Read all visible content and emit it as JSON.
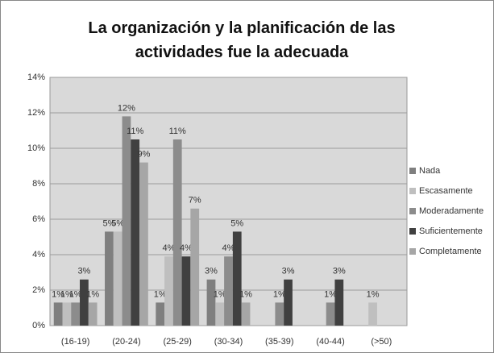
{
  "chart_data": {
    "type": "bar",
    "title": "La organización y la planificación de las actividades fue la adecuada",
    "categories": [
      "(16-19)",
      "(20-24)",
      "(25-29)",
      "(30-34)",
      "(35-39)",
      "(40-44)",
      "(>50)"
    ],
    "series": [
      {
        "name": "Nada",
        "color": "#7f7f7f",
        "values": [
          1.3,
          5.3,
          1.3,
          2.6,
          null,
          null,
          null
        ],
        "value_labels": [
          "1%",
          "5%",
          "1%",
          "3%",
          null,
          null,
          null
        ]
      },
      {
        "name": "Escasamente",
        "color": "#bfbfbf",
        "values": [
          1.3,
          5.3,
          3.9,
          1.3,
          null,
          null,
          1.3
        ],
        "value_labels": [
          "1%",
          "5%",
          "4%",
          "1%",
          null,
          null,
          "1%"
        ]
      },
      {
        "name": "Moderadamente",
        "color": "#8c8c8c",
        "values": [
          1.3,
          11.8,
          10.5,
          3.9,
          1.3,
          1.3,
          null
        ],
        "value_labels": [
          "1%",
          "12%",
          "11%",
          "4%",
          "1%",
          "1%",
          null
        ]
      },
      {
        "name": "Suficientemente",
        "color": "#404040",
        "values": [
          2.6,
          10.5,
          3.9,
          5.3,
          2.6,
          2.6,
          null
        ],
        "value_labels": [
          "3%",
          "11%",
          "4%",
          "5%",
          "3%",
          "3%",
          null
        ]
      },
      {
        "name": "Completamente",
        "color": "#a6a6a6",
        "values": [
          1.3,
          9.2,
          6.6,
          1.3,
          null,
          null,
          null
        ],
        "value_labels": [
          "1%",
          "9%",
          "7%",
          "1%",
          null,
          null,
          null
        ]
      }
    ],
    "ylim": [
      0,
      14
    ],
    "yticks": [
      {
        "value": 0,
        "label": "0%"
      },
      {
        "value": 2,
        "label": "2%"
      },
      {
        "value": 4,
        "label": "4%"
      },
      {
        "value": 6,
        "label": "6%"
      },
      {
        "value": 8,
        "label": "8%"
      },
      {
        "value": 10,
        "label": "10%"
      },
      {
        "value": 12,
        "label": "12%"
      },
      {
        "value": 14,
        "label": "14%"
      }
    ],
    "grid": true,
    "legend": "right"
  }
}
